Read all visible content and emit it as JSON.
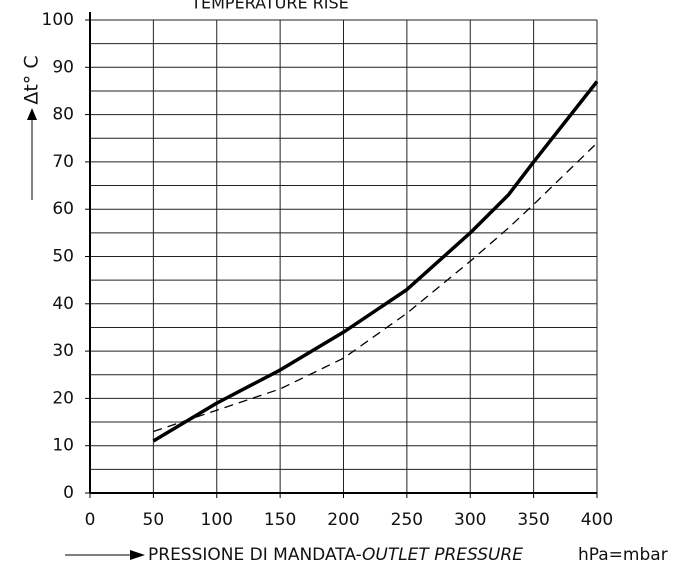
{
  "chart_data": {
    "type": "line",
    "title": "TEMPERATURE RISE",
    "y_label": "Δt° C",
    "x_label": "PRESSIONE DI MANDATA-",
    "x_label_italic": "OUTLET PRESSURE",
    "x_unit": "hPa=mbar",
    "x": [
      50,
      100,
      150,
      200,
      250,
      300,
      330,
      350,
      400
    ],
    "series": [
      {
        "color": "#000000",
        "style": "solid",
        "values": [
          11,
          19,
          26,
          34,
          43,
          55,
          63,
          70,
          87
        ]
      },
      {
        "color": "#000000",
        "style": "dashed",
        "values": [
          13,
          17.5,
          22,
          28.5,
          38,
          49,
          56,
          61,
          74
        ]
      }
    ],
    "xlim": [
      0,
      400
    ],
    "xticks": [
      0,
      50,
      100,
      150,
      200,
      250,
      300,
      350,
      400
    ],
    "ylim": [
      0,
      100
    ],
    "yticks": [
      0,
      10,
      20,
      30,
      40,
      50,
      60,
      70,
      80,
      90,
      100
    ],
    "yminor": [
      5,
      15,
      25,
      35,
      45,
      55,
      65,
      75,
      85,
      95
    ],
    "grid": true
  }
}
